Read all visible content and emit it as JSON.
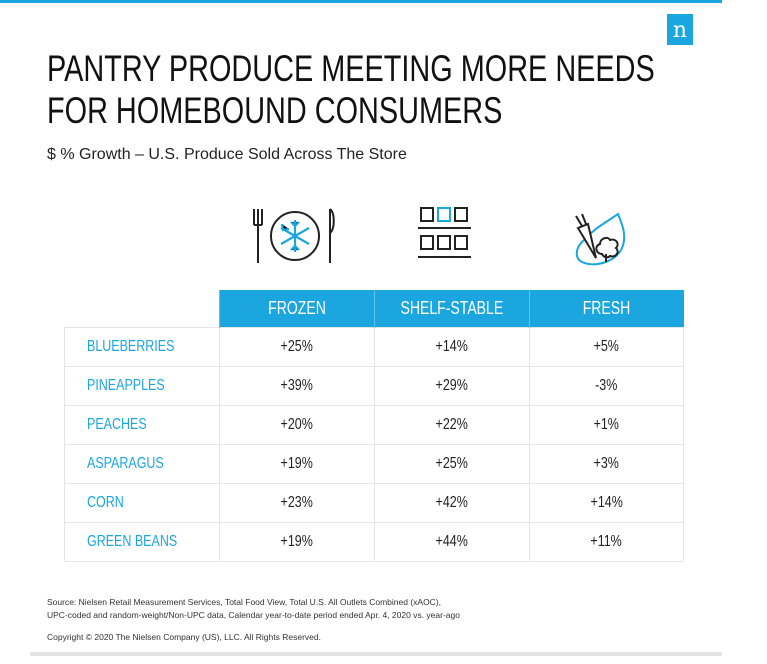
{
  "brand": {
    "logo_letter": "n",
    "accent": "#1ba6e0"
  },
  "title_lines": [
    "PANTRY PRODUCE MEETING MORE NEEDS",
    "FOR HOMEBOUND CONSUMERS"
  ],
  "subtitle": "$ % Growth  – U.S. Produce Sold Across The Store",
  "icons": [
    "frozen-plate-snowflake-icon",
    "shelf-boxes-icon",
    "fresh-vegetables-icon"
  ],
  "chart_data": {
    "type": "table",
    "columns": [
      "FROZEN",
      "SHELF-STABLE",
      "FRESH"
    ],
    "rows": [
      {
        "label": "BLUEBERRIES",
        "values": [
          "+25%",
          "+14%",
          "+5%"
        ]
      },
      {
        "label": "PINEAPPLES",
        "values": [
          "+39%",
          "+29%",
          "-3%"
        ]
      },
      {
        "label": "PEACHES",
        "values": [
          "+20%",
          "+22%",
          "+1%"
        ]
      },
      {
        "label": "ASPARAGUS",
        "values": [
          "+19%",
          "+25%",
          "+3%"
        ]
      },
      {
        "label": "CORN",
        "values": [
          "+23%",
          "+42%",
          "+14%"
        ]
      },
      {
        "label": "GREEN BEANS",
        "values": [
          "+19%",
          "+44%",
          "+11%"
        ]
      }
    ]
  },
  "source_lines": [
    "Source: Nielsen Retail Measurement Services, Total Food View, Total U.S. All Outlets Combined (xAOC),",
    "UPC-coded and random-weight/Non-UPC data, Calendar year-to-date period ended Apr. 4, 2020 vs. year-ago"
  ],
  "copyright": "Copyright © 2020 The Nielsen Company (US), LLC. All Rights Reserved."
}
